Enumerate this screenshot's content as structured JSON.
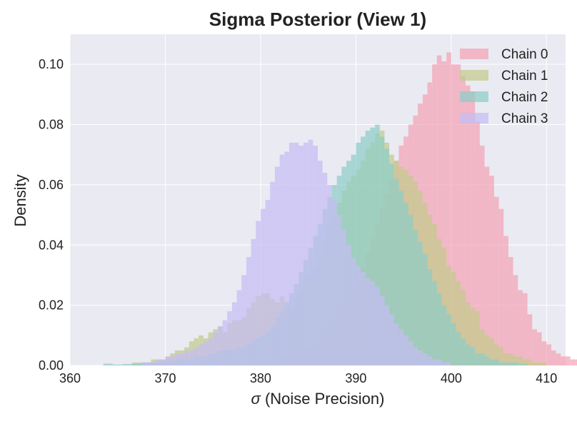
{
  "chart_data": {
    "type": "histogram",
    "title": "Sigma Posterior (View 1)",
    "xlabel_symbol": "σ",
    "xlabel_text": " (Noise Precision)",
    "ylabel": "Density",
    "xlim": [
      360,
      412
    ],
    "ylim": [
      0,
      0.11
    ],
    "xticks": [
      360,
      370,
      380,
      390,
      400,
      410
    ],
    "xtick_labels": [
      "360",
      "370",
      "380",
      "390",
      "400",
      "410"
    ],
    "yticks": [
      0,
      0.02,
      0.04,
      0.06,
      0.08,
      0.1
    ],
    "ytick_labels": [
      "0.00",
      "0.02",
      "0.04",
      "0.06",
      "0.08",
      "0.10"
    ],
    "grid": true,
    "legend_position": "top-right",
    "series": [
      {
        "name": "Chain 0",
        "color": "#f4a3b5",
        "bin_start": 380.5,
        "bin_width": 0.5,
        "values": [
          0.001,
          0.001,
          0.002,
          0.002,
          0.003,
          0.003,
          0.004,
          0.004,
          0.005,
          0.006,
          0.007,
          0.008,
          0.01,
          0.012,
          0.014,
          0.016,
          0.019,
          0.022,
          0.025,
          0.029,
          0.033,
          0.037,
          0.042,
          0.047,
          0.052,
          0.057,
          0.062,
          0.068,
          0.073,
          0.076,
          0.08,
          0.083,
          0.087,
          0.09,
          0.094,
          0.1,
          0.103,
          0.101,
          0.104,
          0.1,
          0.1,
          0.096,
          0.093,
          0.091,
          0.081,
          0.073,
          0.066,
          0.063,
          0.056,
          0.052,
          0.043,
          0.036,
          0.03,
          0.025,
          0.024,
          0.017,
          0.012,
          0.011,
          0.008,
          0.007,
          0.005,
          0.004,
          0.003,
          0.003,
          0.002,
          0.002,
          0.001,
          0.001,
          0.001
        ]
      },
      {
        "name": "Chain 1",
        "color": "#c4cb8a",
        "bin_start": 366.5,
        "bin_width": 0.5,
        "values": [
          0.001,
          0.001,
          0.001,
          0.001,
          0.002,
          0.002,
          0.002,
          0.003,
          0.004,
          0.005,
          0.005,
          0.006,
          0.008,
          0.009,
          0.01,
          0.009,
          0.011,
          0.012,
          0.013,
          0.011,
          0.014,
          0.015,
          0.015,
          0.016,
          0.019,
          0.021,
          0.023,
          0.024,
          0.024,
          0.022,
          0.021,
          0.023,
          0.02,
          0.019,
          0.022,
          0.025,
          0.029,
          0.03,
          0.033,
          0.037,
          0.042,
          0.046,
          0.05,
          0.054,
          0.058,
          0.061,
          0.063,
          0.065,
          0.068,
          0.072,
          0.074,
          0.077,
          0.078,
          0.074,
          0.07,
          0.068,
          0.066,
          0.065,
          0.063,
          0.061,
          0.058,
          0.054,
          0.05,
          0.047,
          0.042,
          0.039,
          0.033,
          0.031,
          0.028,
          0.025,
          0.021,
          0.019,
          0.018,
          0.012,
          0.01,
          0.009,
          0.007,
          0.006,
          0.004,
          0.004,
          0.003,
          0.003,
          0.002,
          0.002,
          0.001,
          0.001,
          0.001
        ]
      },
      {
        "name": "Chain 2",
        "color": "#8ecdc8",
        "bin_start": 363.5,
        "bin_width": 0.5,
        "values": [
          0.0006,
          0.0006,
          0.0003,
          0.0003,
          0.0005,
          0.0005,
          0.0006,
          0.0006,
          0.001,
          0.001,
          0.001,
          0.001,
          0.001,
          0.0015,
          0.0015,
          0.002,
          0.002,
          0.002,
          0.002,
          0.003,
          0.003,
          0.003,
          0.004,
          0.004,
          0.005,
          0.005,
          0.005,
          0.005,
          0.006,
          0.006,
          0.007,
          0.008,
          0.009,
          0.01,
          0.011,
          0.013,
          0.016,
          0.018,
          0.021,
          0.024,
          0.027,
          0.031,
          0.035,
          0.039,
          0.043,
          0.047,
          0.052,
          0.056,
          0.06,
          0.063,
          0.066,
          0.068,
          0.07,
          0.074,
          0.076,
          0.078,
          0.079,
          0.08,
          0.076,
          0.072,
          0.067,
          0.062,
          0.058,
          0.054,
          0.05,
          0.045,
          0.041,
          0.037,
          0.032,
          0.028,
          0.024,
          0.02,
          0.017,
          0.014,
          0.011,
          0.009,
          0.007,
          0.006,
          0.004,
          0.004,
          0.003,
          0.002,
          0.002,
          0.001,
          0.001,
          0.001,
          0.001,
          0.0006,
          0.0006
        ]
      },
      {
        "name": "Chain 3",
        "color": "#c5bdf4",
        "bin_start": 367.5,
        "bin_width": 0.5,
        "values": [
          0.001,
          0.001,
          0.001,
          0.002,
          0.002,
          0.003,
          0.003,
          0.004,
          0.004,
          0.005,
          0.005,
          0.006,
          0.007,
          0.008,
          0.009,
          0.011,
          0.013,
          0.015,
          0.018,
          0.021,
          0.025,
          0.03,
          0.036,
          0.042,
          0.048,
          0.052,
          0.055,
          0.061,
          0.066,
          0.07,
          0.071,
          0.074,
          0.074,
          0.073,
          0.074,
          0.075,
          0.073,
          0.068,
          0.064,
          0.06,
          0.055,
          0.05,
          0.045,
          0.04,
          0.036,
          0.033,
          0.031,
          0.029,
          0.028,
          0.026,
          0.023,
          0.02,
          0.017,
          0.014,
          0.012,
          0.01,
          0.008,
          0.006,
          0.005,
          0.004,
          0.003,
          0.002,
          0.002,
          0.001,
          0.001
        ]
      }
    ]
  }
}
